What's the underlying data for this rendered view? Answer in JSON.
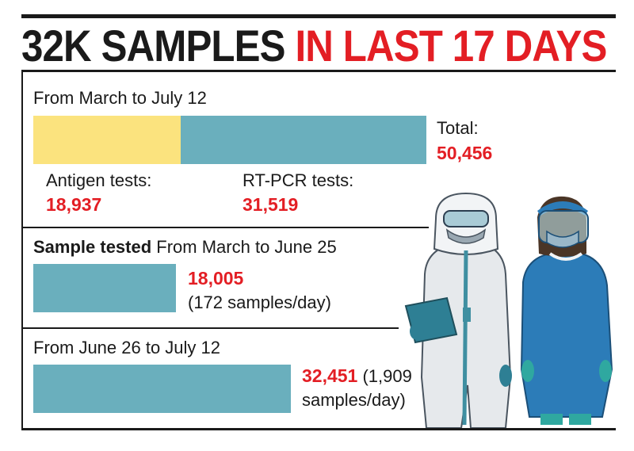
{
  "headline": {
    "part1": "32K SAMPLES",
    "part2": "IN LAST 17 DAYS"
  },
  "colors": {
    "teal": "#6aafbd",
    "yellow": "#fbe37e",
    "red": "#e31e24"
  },
  "illustration": "two health workers in protective suits and masks",
  "chart_data": [
    {
      "type": "bar",
      "title": "From March to July 12",
      "categories": [
        "Antigen tests",
        "RT-PCR tests"
      ],
      "values": [
        18937,
        31519
      ],
      "total": 50456,
      "labels": {
        "antigen_label": "Antigen tests:",
        "antigen_value": "18,937",
        "rtpcr_label": "RT-PCR tests:",
        "rtpcr_value": "31,519",
        "total_label": "Total:",
        "total_value": "50,456"
      }
    },
    {
      "type": "bar",
      "title_bold": "Sample tested",
      "title_rest": "From March to June 25",
      "values": [
        18005
      ],
      "value_text": "18,005",
      "note": "(172 samples/day)"
    },
    {
      "type": "bar",
      "title": "From June 26 to July 12",
      "values": [
        32451
      ],
      "value_text": "32,451",
      "note_line1": "(1,909",
      "note_line2": "samples/day)"
    }
  ]
}
